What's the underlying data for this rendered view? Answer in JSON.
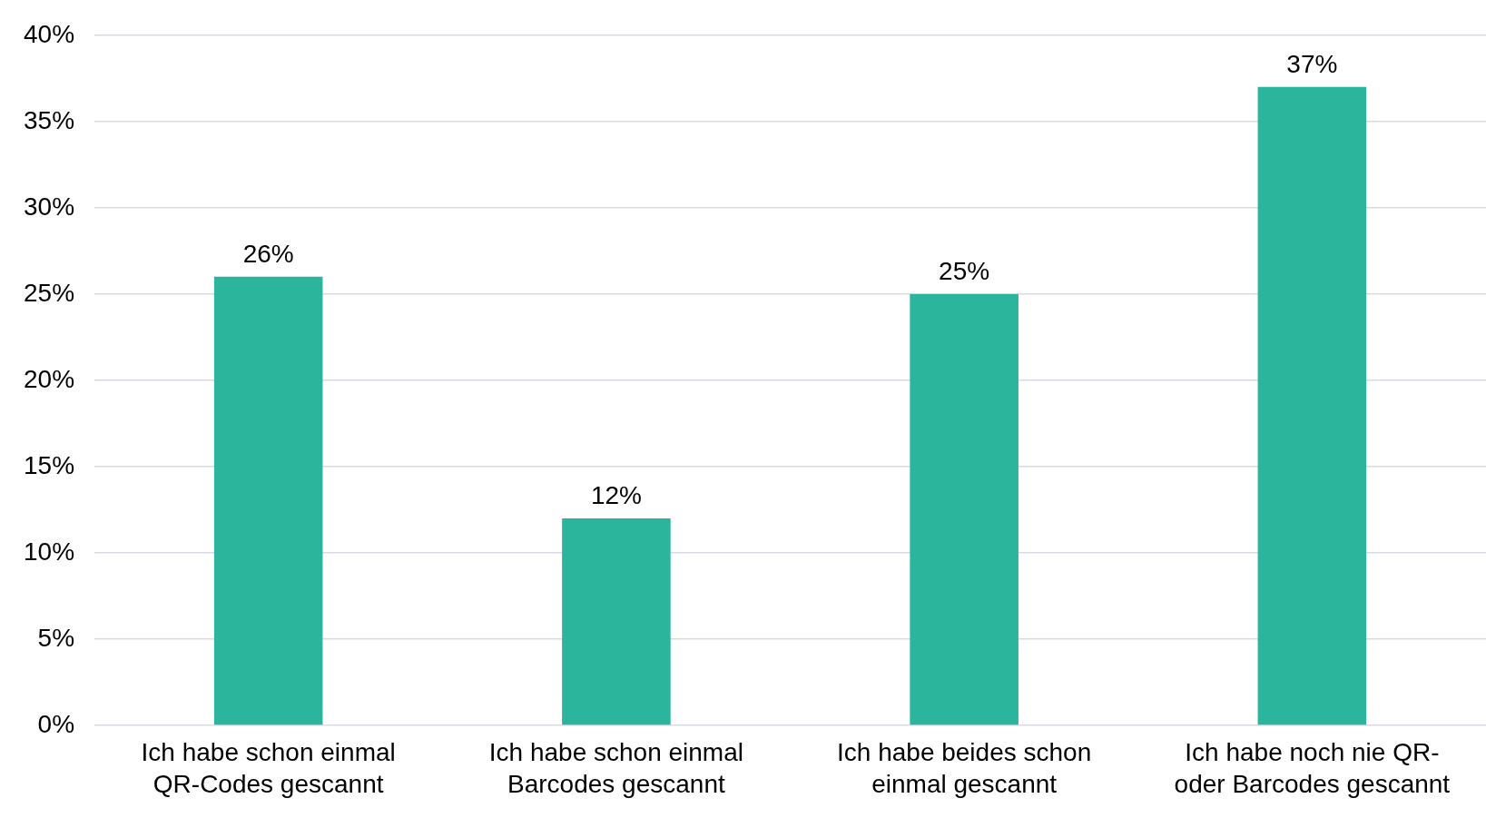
{
  "chart_data": {
    "type": "bar",
    "categories": [
      "Ich habe schon einmal QR-Codes gescannt",
      "Ich habe schon einmal Barcodes gescannt",
      "Ich habe beides schon einmal gescannt",
      "Ich habe noch nie QR- oder Barcodes gescannt"
    ],
    "values": [
      26,
      12,
      25,
      37
    ],
    "value_labels": [
      "26%",
      "12%",
      "25%",
      "37%"
    ],
    "color": "#2bb59c",
    "ylim": [
      0,
      40
    ],
    "yticks": [
      {
        "value": 0,
        "label": "0%"
      },
      {
        "value": 5,
        "label": "5%"
      },
      {
        "value": 10,
        "label": "10%"
      },
      {
        "value": 15,
        "label": "15%"
      },
      {
        "value": 20,
        "label": "20%"
      },
      {
        "value": 25,
        "label": "25%"
      },
      {
        "value": 30,
        "label": "30%"
      },
      {
        "value": 35,
        "label": "35%"
      },
      {
        "value": 40,
        "label": "40%"
      }
    ],
    "grid": "y",
    "legend": false
  }
}
